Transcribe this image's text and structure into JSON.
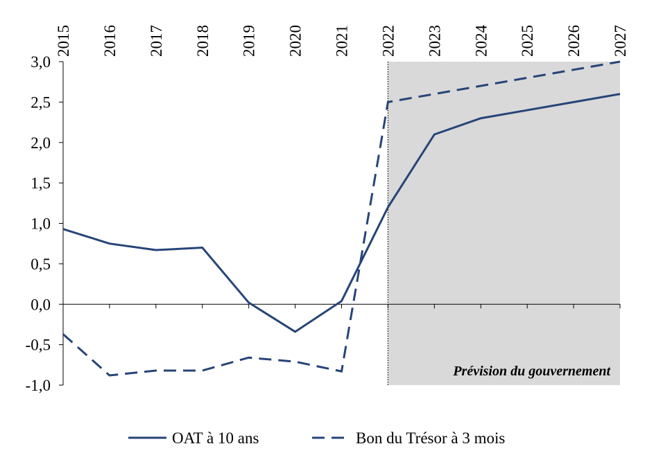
{
  "chart_data": {
    "type": "line",
    "x": [
      2015,
      2016,
      2017,
      2018,
      2019,
      2020,
      2021,
      2022,
      2023,
      2024,
      2025,
      2026,
      2027
    ],
    "xlim": [
      2015,
      2027
    ],
    "xticks": [
      2015,
      2016,
      2017,
      2018,
      2019,
      2020,
      2021,
      2022,
      2023,
      2024,
      2025,
      2026,
      2027
    ],
    "ylim": [
      -1,
      3
    ],
    "yticks": [
      {
        "value": -1,
        "label": "-1,0"
      },
      {
        "value": -0.5,
        "label": "-0,5"
      },
      {
        "value": 0,
        "label": "0,0"
      },
      {
        "value": 0.5,
        "label": "0,5"
      },
      {
        "value": 1,
        "label": "1,0"
      },
      {
        "value": 1.5,
        "label": "1,5"
      },
      {
        "value": 2,
        "label": "2,0"
      },
      {
        "value": 2.5,
        "label": "2,5"
      },
      {
        "value": 3,
        "label": "3,0"
      }
    ],
    "grid": false,
    "legend": "bottom",
    "shaded_region": {
      "xlim": [
        2022,
        2027
      ],
      "color": "#d9d9d9",
      "label": "Prévision du gouvernement"
    },
    "series": [
      {
        "name": "OAT à 10 ans",
        "color": "#264478",
        "dash": "solid",
        "values": [
          0.93,
          0.75,
          0.67,
          0.7,
          0.02,
          -0.34,
          0.04,
          1.2,
          2.1,
          2.3,
          2.4,
          2.5,
          2.6
        ]
      },
      {
        "name": "Bon du Trésor à 3 mois",
        "color": "#264478",
        "dash": "dashed",
        "values": [
          -0.37,
          -0.88,
          -0.82,
          -0.82,
          -0.66,
          -0.71,
          -0.83,
          2.5,
          2.6,
          2.7,
          2.8,
          2.9,
          3.0
        ]
      }
    ]
  }
}
